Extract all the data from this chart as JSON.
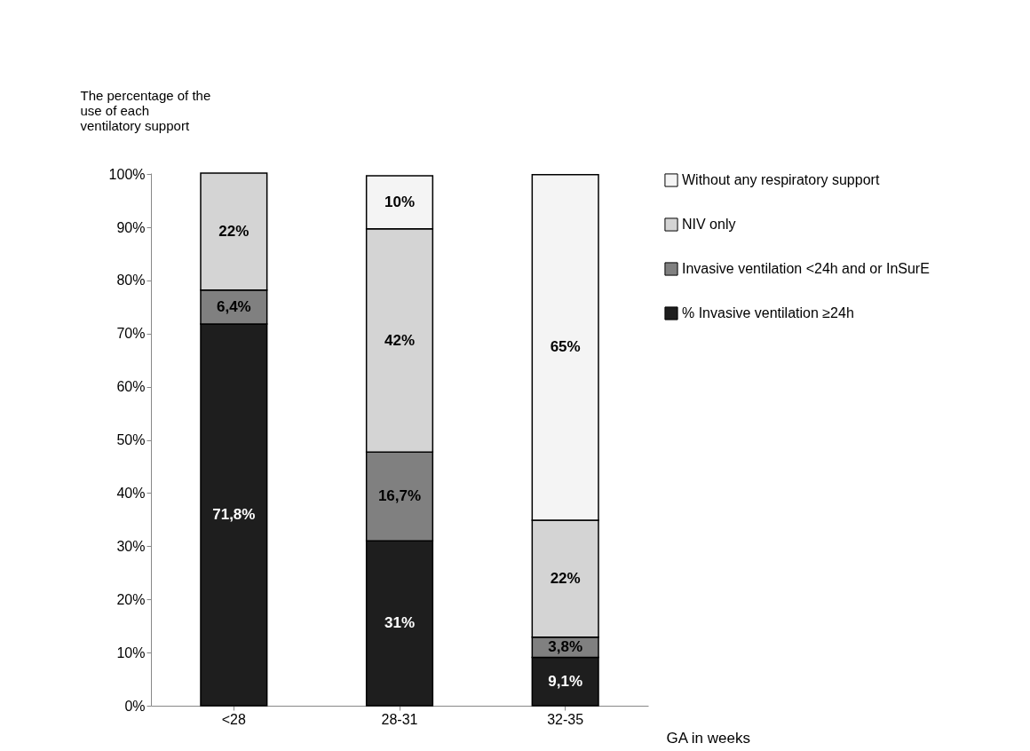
{
  "chart_data": {
    "type": "bar",
    "stacked": true,
    "ylabel": "The percentage of the use of each ventilatory support",
    "xlabel": "GA in weeks",
    "categories": [
      "<28",
      "28-31",
      "32-35"
    ],
    "series": [
      {
        "name": "% Invasive ventilation ≥24h",
        "color": "#1e1e1e",
        "values": [
          71.8,
          31,
          9.1
        ],
        "value_labels": [
          "71,8%",
          "31%",
          "9,1%"
        ]
      },
      {
        "name": "Invasive ventilation <24h and or  InSurE",
        "color": "#808080",
        "values": [
          6.4,
          16.7,
          3.8
        ],
        "value_labels": [
          "6,4%",
          "16,7%",
          "3,8%"
        ]
      },
      {
        "name": "NIV only",
        "color": "#d4d4d4",
        "values": [
          22,
          42,
          22
        ],
        "value_labels": [
          "22%",
          "42%",
          "22%"
        ]
      },
      {
        "name": "Without any respiratory support",
        "color": "#f4f4f4",
        "values": [
          null,
          10,
          65
        ],
        "value_labels": [
          null,
          "10%",
          "65%"
        ]
      }
    ],
    "ylim": [
      0,
      100.2
    ],
    "yticks": [
      {
        "value": 0,
        "label": "0%"
      },
      {
        "value": 10,
        "label": "10%"
      },
      {
        "value": 20,
        "label": "20%"
      },
      {
        "value": 30,
        "label": "30%"
      },
      {
        "value": 40,
        "label": "40%"
      },
      {
        "value": 50,
        "label": "50%"
      },
      {
        "value": 60,
        "label": "60%"
      },
      {
        "value": 70,
        "label": "70%"
      },
      {
        "value": 80,
        "label": "80%"
      },
      {
        "value": 90,
        "label": "90%"
      },
      {
        "value": 100,
        "label": "100%"
      }
    ],
    "grid": false,
    "legend": "right"
  }
}
